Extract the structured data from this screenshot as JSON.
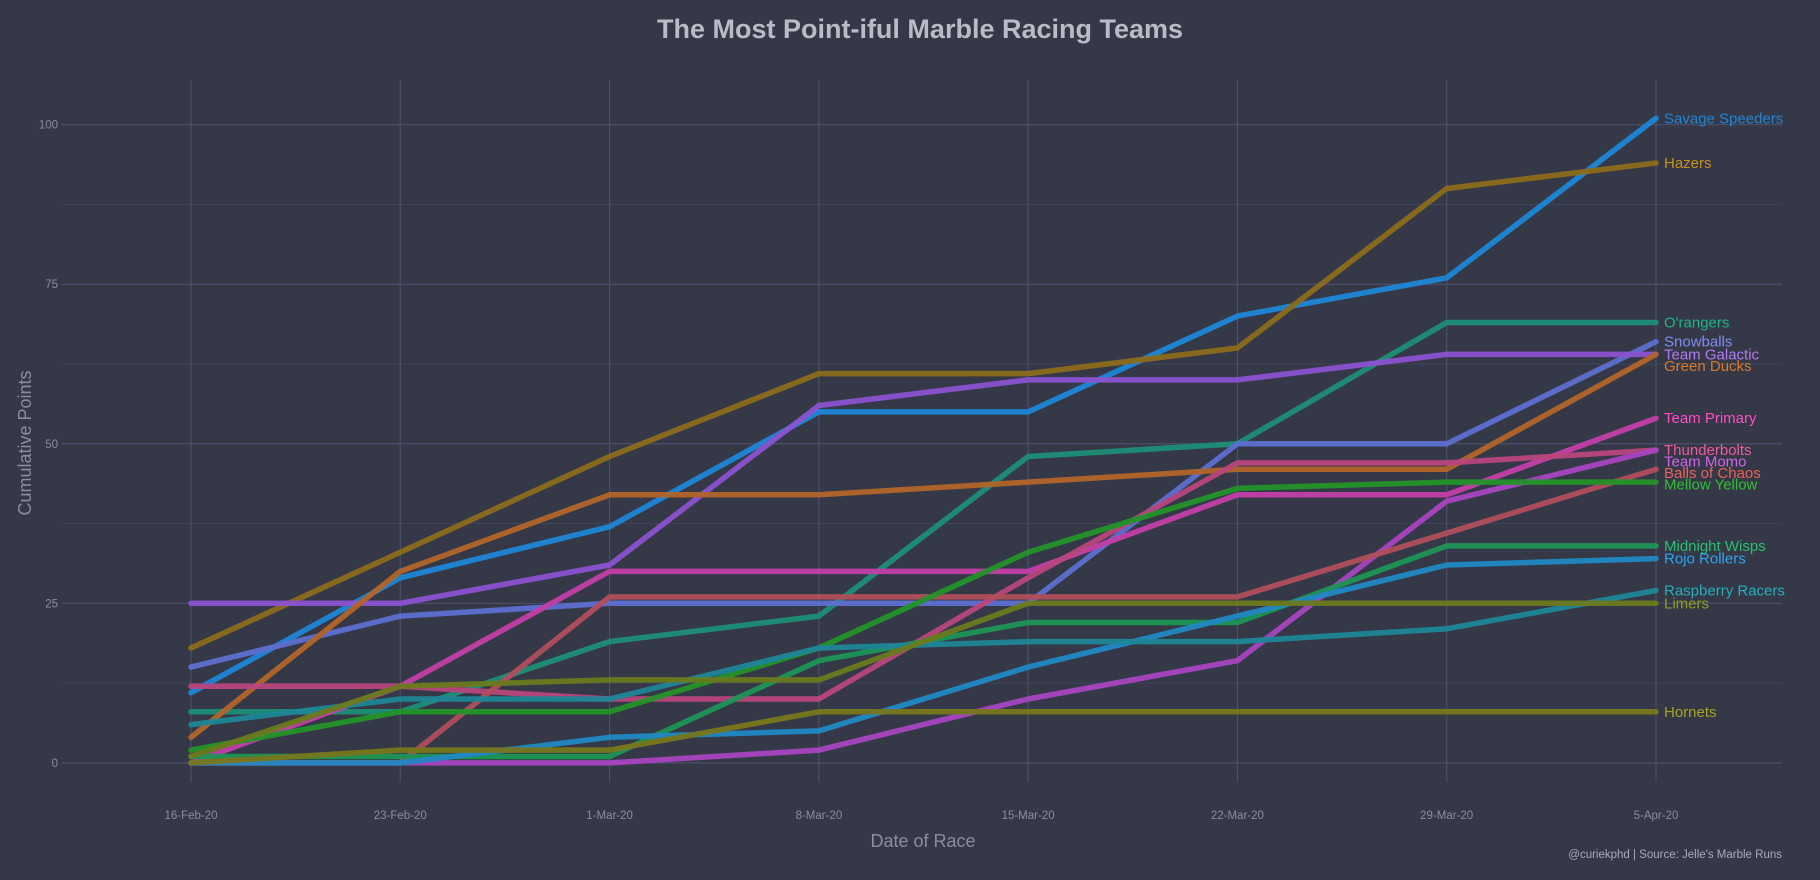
{
  "chart_data": {
    "type": "line",
    "title": "The Most Point-iful Marble Racing Teams",
    "xlabel": "Date of Race",
    "ylabel": "Cumulative Points",
    "caption": "@curiekphd | Source: Jelle's Marble Runs",
    "x": [
      "16-Feb-20",
      "23-Feb-20",
      "1-Mar-20",
      "8-Mar-20",
      "15-Mar-20",
      "22-Mar-20",
      "29-Mar-20",
      "5-Apr-20"
    ],
    "ylim": [
      -3,
      107
    ],
    "yticks": [
      0,
      25,
      50,
      75,
      100
    ],
    "grid": true,
    "legend": "direct labels at right end of lines",
    "series": [
      {
        "name": "Savage Speeders",
        "color": "#1f86d6",
        "values": [
          11,
          29,
          37,
          55,
          55,
          70,
          76,
          101
        ]
      },
      {
        "name": "Hazers",
        "color": "#8c6c1c",
        "label_color": "#c8901c",
        "values": [
          18,
          33,
          48,
          61,
          61,
          65,
          90,
          94
        ]
      },
      {
        "name": "O'rangers",
        "color": "#1f8e76",
        "label_color": "#20b486",
        "values": [
          8,
          8,
          19,
          23,
          48,
          50,
          69,
          69
        ]
      },
      {
        "name": "Snowballs",
        "color": "#5d6fd0",
        "label_color": "#7f8cf0",
        "values": [
          15,
          23,
          25,
          25,
          25,
          50,
          50,
          66
        ]
      },
      {
        "name": "Team Galactic",
        "color": "#8b52d0",
        "label_color": "#b27af0",
        "values": [
          25,
          25,
          31,
          56,
          60,
          60,
          64,
          64
        ]
      },
      {
        "name": "Green Ducks",
        "color": "#b2642a",
        "label_color": "#d87a2c",
        "values": [
          4,
          30,
          42,
          42,
          44,
          46,
          46,
          64
        ]
      },
      {
        "name": "Team Primary",
        "color": "#c33ea8",
        "label_color": "#ff4cc8",
        "values": [
          0,
          12,
          30,
          30,
          30,
          42,
          42,
          54
        ]
      },
      {
        "name": "Thunderbolts",
        "color": "#b8467c",
        "label_color": "#f05a9c",
        "values": [
          12,
          12,
          10,
          10,
          29,
          47,
          47,
          49
        ]
      },
      {
        "name": "Team Momo",
        "color": "#a845c0",
        "label_color": "#d264e8",
        "values": [
          0,
          0,
          0,
          2,
          10,
          16,
          41,
          49
        ]
      },
      {
        "name": "Balls of Chaos",
        "color": "#b04e5c",
        "label_color": "#e8645a",
        "values": [
          0,
          0,
          26,
          26,
          26,
          26,
          36,
          46
        ]
      },
      {
        "name": "Mellow Yellow",
        "color": "#24922a",
        "label_color": "#2ec032",
        "values": [
          2,
          8,
          8,
          18,
          33,
          43,
          44,
          44
        ]
      },
      {
        "name": "Midnight Wisps",
        "color": "#1e9456",
        "label_color": "#28c070",
        "values": [
          1,
          1,
          1,
          16,
          22,
          22,
          34,
          34
        ]
      },
      {
        "name": "Rojo Rollers",
        "color": "#2288c4",
        "label_color": "#2aa6ee",
        "values": [
          0,
          0,
          4,
          5,
          15,
          23,
          31,
          32
        ]
      },
      {
        "name": "Raspberry Racers",
        "color": "#1f8698",
        "label_color": "#26aeba",
        "values": [
          6,
          10,
          10,
          18,
          19,
          19,
          21,
          27
        ]
      },
      {
        "name": "Limers",
        "color": "#6b7a1e",
        "label_color": "#8ea022",
        "values": [
          1,
          12,
          13,
          13,
          25,
          25,
          25,
          25
        ]
      },
      {
        "name": "Hornets",
        "color": "#78761c",
        "label_color": "#a8a224",
        "values": [
          0,
          2,
          2,
          8,
          8,
          8,
          8,
          8
        ]
      }
    ]
  },
  "colors": {
    "background": "#343847",
    "grid_major": "#4d4f6a",
    "grid_minor": "#40435a",
    "axis_text": "#8a8d9c",
    "title": "#b9bbc6"
  }
}
